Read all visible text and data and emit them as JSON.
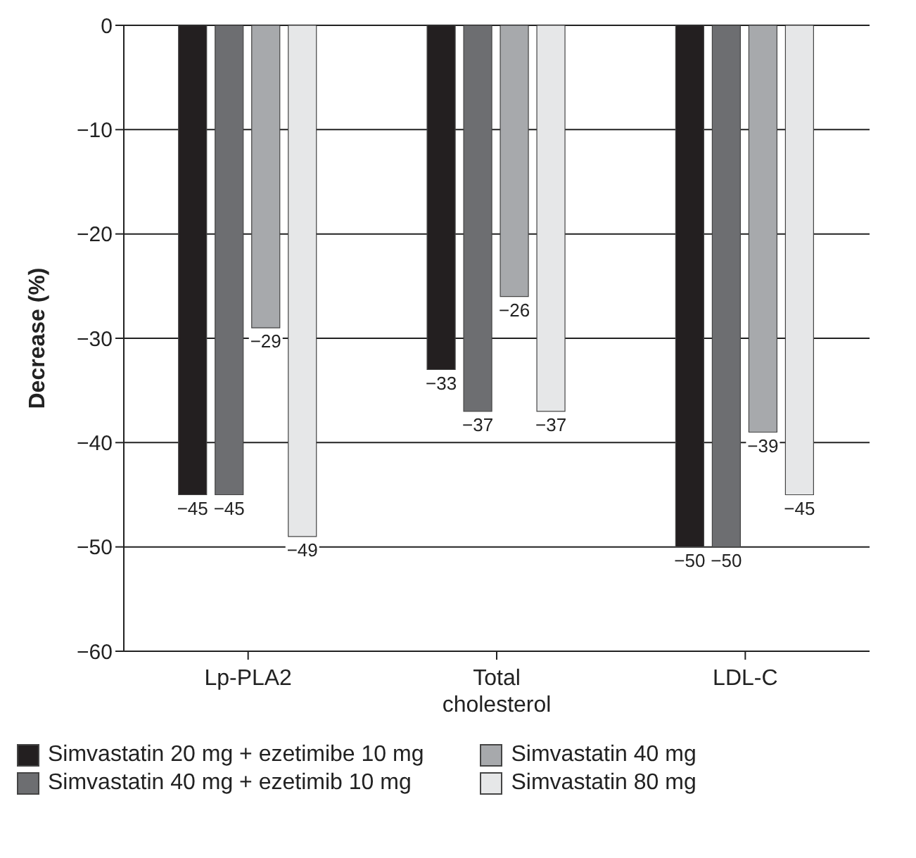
{
  "chart_data": {
    "type": "bar",
    "ylabel": "Decrease (%)",
    "categories": [
      "Lp-PLA2",
      "Total cholesterol",
      "LDL-C"
    ],
    "series": [
      {
        "name": "Simvastatin 20 mg + ezetimibe 10 mg",
        "color": "#231f20",
        "values": [
          -45,
          -33,
          -50
        ],
        "value_labels": [
          "−45",
          "−33",
          "−50"
        ]
      },
      {
        "name": "Simvastatin 40 mg + ezetimib 10 mg",
        "color": "#6d6e71",
        "values": [
          -45,
          -37,
          -50
        ],
        "value_labels": [
          "−45",
          "−37",
          "−50"
        ]
      },
      {
        "name": "Simvastatin 40 mg",
        "color": "#a7a9ac",
        "values": [
          -29,
          -26,
          -39
        ],
        "value_labels": [
          "−29",
          "−26",
          "−39"
        ]
      },
      {
        "name": "Simvastatin 80 mg",
        "color": "#e6e7e8",
        "values": [
          -49,
          -37,
          -45
        ],
        "value_labels": [
          "−49",
          "−37",
          "−45"
        ]
      }
    ],
    "ylim": [
      -60,
      0
    ],
    "yticks": [
      0,
      {
        "value": -10,
        "label": "−10"
      },
      {
        "value": -20,
        "label": "−20"
      },
      {
        "value": -30,
        "label": "−30"
      },
      {
        "value": -40,
        "label": "−40"
      },
      {
        "value": -50,
        "label": "−50"
      },
      {
        "value": -60,
        "label": "−60"
      }
    ],
    "grid": "y",
    "legend": "bottom"
  }
}
